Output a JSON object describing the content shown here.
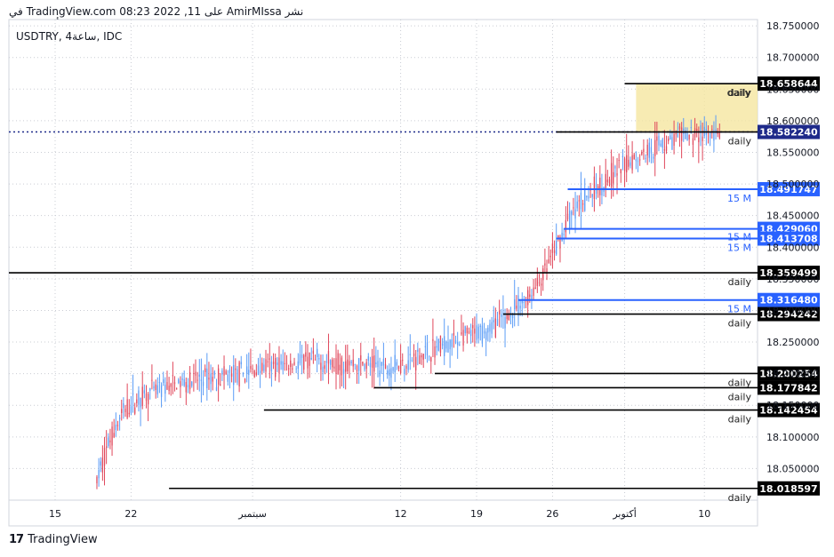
{
  "header": {
    "caption": "نشر AmirMIssa على TradingView.com 08:23 2022 ,11 في أكتوبر UTC"
  },
  "symbol_label": "USDTRY, 4ساعة, IDC",
  "footer": {
    "brand": "TradingView",
    "logo_icon": "tradingview-logo-icon"
  },
  "chart_data": {
    "type": "candlestick",
    "ylim": [
      18.0,
      18.76
    ],
    "y_ticks": [
      18.05,
      18.1,
      18.15,
      18.2,
      18.25,
      18.3,
      18.35,
      18.4,
      18.45,
      18.5,
      18.55,
      18.6,
      18.65,
      18.7,
      18.75
    ],
    "y_tick_labels": [
      "18.050000",
      "18.100000",
      "18.150000",
      "18.200000",
      "18.250000",
      "18.300000",
      "18.350000",
      "18.400000",
      "18.450000",
      "18.500000",
      "18.550000",
      "18.600000",
      "18.650000",
      "18.700000",
      "18.750000"
    ],
    "x_ticks": [
      {
        "label": "15",
        "bar": 0
      },
      {
        "label": "22",
        "bar": 40
      },
      {
        "label": "سبتمبر",
        "bar": 104
      },
      {
        "label": "12",
        "bar": 182
      },
      {
        "label": "19",
        "bar": 222
      },
      {
        "label": "26",
        "bar": 262
      },
      {
        "label": "أكتوبر",
        "bar": 300
      },
      {
        "label": "10",
        "bar": 342
      }
    ],
    "bar_count": 356,
    "colors": {
      "up": "#5b9cf6",
      "down": "#e0475b",
      "blue_level": "#2962ff",
      "black_level": "#000000",
      "zone_fill": "#f5e6a0"
    },
    "candles_anchor_path": [
      [
        22,
        18.03
      ],
      [
        28,
        18.09
      ],
      [
        36,
        18.14
      ],
      [
        46,
        18.165
      ],
      [
        60,
        18.18
      ],
      [
        74,
        18.19
      ],
      [
        88,
        18.195
      ],
      [
        100,
        18.2
      ],
      [
        110,
        18.21
      ],
      [
        124,
        18.215
      ],
      [
        138,
        18.22
      ],
      [
        150,
        18.215
      ],
      [
        162,
        18.215
      ],
      [
        176,
        18.21
      ],
      [
        190,
        18.225
      ],
      [
        204,
        18.245
      ],
      [
        218,
        18.26
      ],
      [
        228,
        18.27
      ],
      [
        238,
        18.29
      ],
      [
        246,
        18.31
      ],
      [
        252,
        18.33
      ],
      [
        258,
        18.36
      ],
      [
        264,
        18.4
      ],
      [
        270,
        18.44
      ],
      [
        276,
        18.47
      ],
      [
        284,
        18.49
      ],
      [
        292,
        18.51
      ],
      [
        300,
        18.53
      ],
      [
        310,
        18.55
      ],
      [
        320,
        18.565
      ],
      [
        330,
        18.575
      ],
      [
        340,
        18.58
      ],
      [
        350,
        18.575
      ]
    ],
    "highlight_zone": {
      "bar_start": 306,
      "bar_end": 356,
      "from": 18.58224,
      "to": 18.658644,
      "label": "daily"
    },
    "current_price": {
      "value": 18.58224,
      "label": "18.582240"
    },
    "levels": [
      {
        "value": 18.658644,
        "label": "18.658644",
        "kind": "black",
        "bar_start": 300,
        "tag": "daily"
      },
      {
        "value": 18.58224,
        "label": "18.582240",
        "kind": "black",
        "bar_start": 264,
        "tag": "daily"
      },
      {
        "value": 18.491747,
        "label": "18.491747",
        "kind": "blue",
        "bar_start": 270,
        "tag": "15 M"
      },
      {
        "value": 18.42906,
        "label": "18.429060",
        "kind": "blue",
        "bar_start": 268,
        "tag": ""
      },
      {
        "value": 18.413708,
        "label": "18.413708",
        "kind": "blue",
        "bar_start": 264,
        "tag": "15 M"
      },
      {
        "value": 18.359499,
        "label": "18.359499",
        "kind": "black",
        "bar_start": -999,
        "tag": "daily"
      },
      {
        "value": 18.31648,
        "label": "18.316480",
        "kind": "blue",
        "bar_start": 244,
        "tag": "15 M"
      },
      {
        "value": 18.294242,
        "label": "18.294242",
        "kind": "black",
        "bar_start": 236,
        "tag": "daily"
      },
      {
        "value": 18.200254,
        "label": "18.200254",
        "kind": "black",
        "bar_start": 200,
        "tag": "daily"
      },
      {
        "value": 18.177842,
        "label": "18.177842",
        "kind": "black",
        "bar_start": 168,
        "tag": "daily"
      },
      {
        "value": 18.142454,
        "label": "18.142454",
        "kind": "black",
        "bar_start": 110,
        "tag": "daily"
      },
      {
        "value": 18.018597,
        "label": "18.018597",
        "kind": "black",
        "bar_start": 60,
        "tag": "daily"
      }
    ],
    "extra_tag": "15 M"
  }
}
